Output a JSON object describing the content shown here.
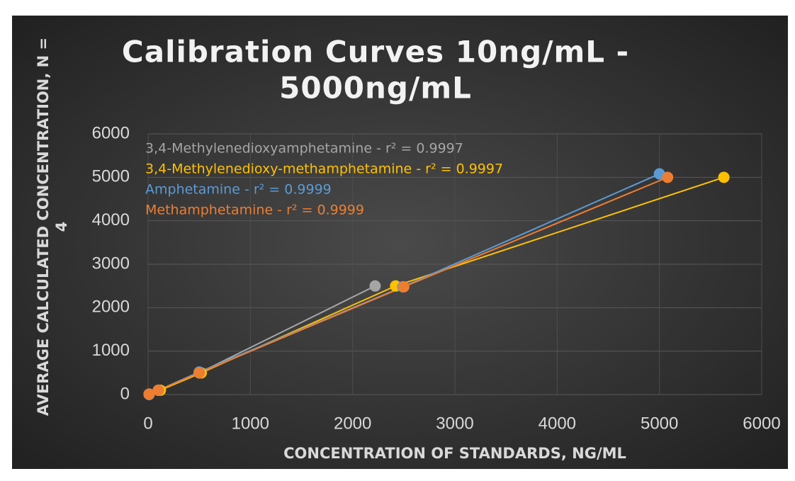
{
  "chart_data": {
    "type": "scatter-line",
    "title": [
      "Calibration Curves 10ng/mL -",
      "5000ng/mL"
    ],
    "x_label": "CONCENTRATION OF STANDARDS, NG/ML",
    "y_label": [
      "AVERAGE CALCULATED CONCENTRATION, N =",
      "4"
    ],
    "xlim": [
      0,
      6000
    ],
    "xticks": [
      0,
      1000,
      2000,
      3000,
      4000,
      5000,
      6000
    ],
    "ylim": [
      0,
      6000
    ],
    "yticks": [
      0,
      1000,
      2000,
      3000,
      4000,
      5000,
      6000
    ],
    "grid": true,
    "series": [
      {
        "name": "3,4-Methylenedioxyamphetamine - r² = 0.9997",
        "color": "#a5a5a5",
        "x": [
          10,
          100,
          500,
          2220
        ],
        "values": [
          10,
          100,
          500,
          2500
        ]
      },
      {
        "name": "3,4-Methylenedioxy-methamphetamine - r² = 0.9997",
        "color": "#ffc000",
        "x": [
          10,
          120,
          520,
          2420,
          5630
        ],
        "values": [
          10,
          100,
          500,
          2500,
          5000
        ]
      },
      {
        "name": "Amphetamine - r² = 0.9999",
        "color": "#5b9bd5",
        "x": [
          10,
          100,
          500,
          2490,
          5000
        ],
        "values": [
          0,
          100,
          520,
          2480,
          5080
        ]
      },
      {
        "name": "Methamphetamine - r² = 0.9999",
        "color": "#ed7d31",
        "x": [
          10,
          100,
          500,
          2500,
          5080
        ],
        "values": [
          10,
          100,
          500,
          2480,
          5000
        ]
      }
    ]
  }
}
